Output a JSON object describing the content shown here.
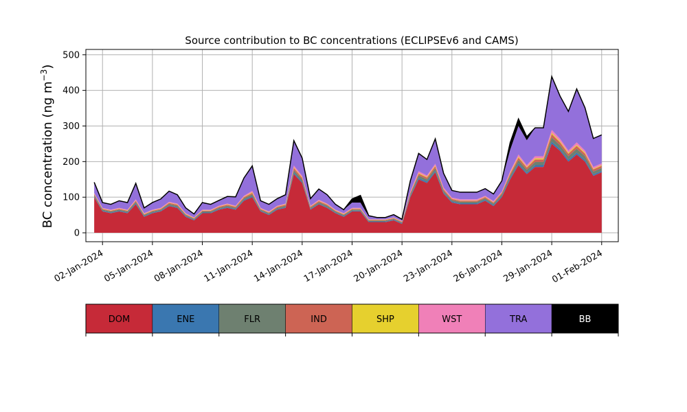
{
  "chart_data": {
    "type": "area",
    "stacked": true,
    "title": "Source contribution to BC concentrations (ECLIPSEv6 and CAMS)",
    "ylabel_main": "BC concentration (ng m",
    "ylabel_sup": "−3",
    "ylabel_close": ")",
    "xlabel": "",
    "ylim": [
      -25,
      515
    ],
    "xlim": [
      "2024-01-01",
      "2024-02-02"
    ],
    "grid": true,
    "y_ticks": [
      "0",
      "100",
      "200",
      "300",
      "400",
      "500"
    ],
    "x_ticks": [
      "02-Jan-2024",
      "05-Jan-2024",
      "08-Jan-2024",
      "11-Jan-2024",
      "14-Jan-2024",
      "17-Jan-2024",
      "20-Jan-2024",
      "23-Jan-2024",
      "26-Jan-2024",
      "29-Jan-2024",
      "01-Feb-2024"
    ],
    "x_tick_dates": [
      "2024-01-02",
      "2024-01-05",
      "2024-01-08",
      "2024-01-11",
      "2024-01-14",
      "2024-01-17",
      "2024-01-20",
      "2024-01-23",
      "2024-01-26",
      "2024-01-29",
      "2024-02-01"
    ],
    "legend_position": "bottom",
    "legend": [
      {
        "name": "DOM",
        "color": "#c62a38"
      },
      {
        "name": "ENE",
        "color": "#3a77b0"
      },
      {
        "name": "FLR",
        "color": "#6e8070"
      },
      {
        "name": "IND",
        "color": "#cd6454"
      },
      {
        "name": "SHP",
        "color": "#e6d02e"
      },
      {
        "name": "WST",
        "color": "#f080b8"
      },
      {
        "name": "TRA",
        "color": "#9370db"
      },
      {
        "name": "BB",
        "color": "#000000"
      }
    ],
    "x": [
      "2024-01-01 12:00",
      "2024-01-02 00:00",
      "2024-01-02 12:00",
      "2024-01-03 00:00",
      "2024-01-03 12:00",
      "2024-01-04 00:00",
      "2024-01-04 12:00",
      "2024-01-05 00:00",
      "2024-01-05 12:00",
      "2024-01-06 00:00",
      "2024-01-06 12:00",
      "2024-01-07 00:00",
      "2024-01-07 12:00",
      "2024-01-08 00:00",
      "2024-01-08 12:00",
      "2024-01-09 00:00",
      "2024-01-09 12:00",
      "2024-01-10 00:00",
      "2024-01-10 12:00",
      "2024-01-11 00:00",
      "2024-01-11 12:00",
      "2024-01-12 00:00",
      "2024-01-12 12:00",
      "2024-01-13 00:00",
      "2024-01-13 12:00",
      "2024-01-14 00:00",
      "2024-01-14 12:00",
      "2024-01-15 00:00",
      "2024-01-15 12:00",
      "2024-01-16 00:00",
      "2024-01-16 12:00",
      "2024-01-17 00:00",
      "2024-01-17 12:00",
      "2024-01-18 00:00",
      "2024-01-18 12:00",
      "2024-01-19 00:00",
      "2024-01-19 12:00",
      "2024-01-20 00:00",
      "2024-01-20 12:00",
      "2024-01-21 00:00",
      "2024-01-21 12:00",
      "2024-01-22 00:00",
      "2024-01-22 12:00",
      "2024-01-23 00:00",
      "2024-01-23 12:00",
      "2024-01-24 00:00",
      "2024-01-24 12:00",
      "2024-01-25 00:00",
      "2024-01-25 12:00",
      "2024-01-26 00:00",
      "2024-01-26 12:00",
      "2024-01-27 00:00",
      "2024-01-27 12:00",
      "2024-01-28 00:00",
      "2024-01-28 12:00",
      "2024-01-29 00:00",
      "2024-01-29 12:00",
      "2024-01-30 00:00",
      "2024-01-30 12:00",
      "2024-01-31 00:00",
      "2024-01-31 12:00",
      "2024-02-01 00:00"
    ],
    "series": [
      {
        "name": "DOM",
        "values": [
          100,
          60,
          55,
          60,
          55,
          80,
          45,
          55,
          60,
          75,
          70,
          45,
          35,
          55,
          55,
          65,
          70,
          65,
          90,
          100,
          60,
          50,
          65,
          70,
          165,
          140,
          65,
          80,
          70,
          55,
          45,
          60,
          60,
          30,
          30,
          30,
          35,
          25,
          100,
          150,
          140,
          170,
          110,
          85,
          80,
          80,
          80,
          90,
          75,
          100,
          150,
          190,
          165,
          185,
          185,
          250,
          230,
          200,
          220,
          200,
          160,
          170
        ]
      },
      {
        "name": "ENE",
        "values": [
          2,
          2,
          2,
          2,
          2,
          3,
          2,
          2,
          2,
          2,
          2,
          2,
          2,
          2,
          2,
          2,
          2,
          2,
          3,
          3,
          2,
          2,
          2,
          2,
          4,
          3,
          2,
          2,
          2,
          2,
          2,
          2,
          2,
          2,
          2,
          2,
          2,
          2,
          3,
          4,
          4,
          4,
          3,
          3,
          3,
          3,
          3,
          3,
          3,
          3,
          4,
          5,
          4,
          5,
          5,
          6,
          5,
          5,
          5,
          5,
          4,
          4
        ]
      },
      {
        "name": "FLR",
        "values": [
          4,
          3,
          3,
          3,
          3,
          4,
          3,
          3,
          3,
          4,
          4,
          3,
          2,
          3,
          3,
          3,
          4,
          3,
          4,
          5,
          3,
          3,
          3,
          4,
          7,
          6,
          3,
          4,
          4,
          3,
          3,
          3,
          3,
          2,
          2,
          2,
          2,
          2,
          5,
          7,
          6,
          7,
          5,
          4,
          4,
          4,
          4,
          4,
          4,
          5,
          7,
          9,
          8,
          9,
          9,
          12,
          11,
          10,
          11,
          10,
          8,
          8
        ]
      },
      {
        "name": "IND",
        "values": [
          3,
          2,
          2,
          2,
          2,
          3,
          2,
          2,
          2,
          3,
          3,
          2,
          2,
          2,
          2,
          3,
          3,
          3,
          3,
          4,
          2,
          2,
          3,
          3,
          6,
          5,
          3,
          3,
          3,
          2,
          2,
          2,
          2,
          2,
          2,
          2,
          2,
          2,
          4,
          5,
          5,
          6,
          4,
          3,
          3,
          3,
          3,
          3,
          3,
          4,
          5,
          7,
          6,
          7,
          7,
          9,
          8,
          7,
          8,
          7,
          6,
          6
        ]
      },
      {
        "name": "SHP",
        "values": [
          1,
          1,
          1,
          1,
          1,
          1,
          1,
          1,
          1,
          1,
          1,
          1,
          1,
          1,
          1,
          1,
          1,
          1,
          1,
          2,
          1,
          1,
          1,
          1,
          2,
          2,
          1,
          1,
          1,
          1,
          1,
          1,
          1,
          1,
          1,
          1,
          1,
          1,
          1,
          2,
          2,
          2,
          1,
          1,
          1,
          1,
          1,
          1,
          1,
          1,
          2,
          3,
          2,
          3,
          3,
          4,
          3,
          3,
          3,
          3,
          2,
          2
        ]
      },
      {
        "name": "WST",
        "values": [
          2,
          2,
          2,
          2,
          2,
          3,
          2,
          2,
          2,
          2,
          2,
          2,
          1,
          2,
          2,
          2,
          2,
          2,
          3,
          4,
          2,
          2,
          2,
          2,
          5,
          4,
          2,
          3,
          2,
          2,
          2,
          2,
          2,
          1,
          1,
          1,
          1,
          1,
          3,
          5,
          4,
          5,
          4,
          3,
          3,
          3,
          3,
          3,
          3,
          3,
          5,
          6,
          5,
          6,
          6,
          8,
          7,
          6,
          7,
          6,
          5,
          5
        ]
      },
      {
        "name": "TRA",
        "values": [
          30,
          15,
          15,
          20,
          20,
          45,
          15,
          20,
          25,
          30,
          25,
          15,
          10,
          20,
          15,
          15,
          20,
          25,
          50,
          70,
          20,
          20,
          20,
          25,
          70,
          50,
          20,
          30,
          25,
          15,
          10,
          15,
          15,
          8,
          5,
          5,
          8,
          5,
          30,
          50,
          45,
          70,
          40,
          20,
          20,
          20,
          20,
          20,
          20,
          30,
          60,
          80,
          70,
          80,
          80,
          150,
          120,
          110,
          150,
          120,
          80,
          80
        ]
      },
      {
        "name": "BB",
        "values": [
          0,
          0,
          0,
          0,
          0,
          0,
          0,
          0,
          0,
          0,
          0,
          0,
          0,
          0,
          0,
          0,
          0,
          0,
          0,
          0,
          0,
          0,
          0,
          0,
          0,
          0,
          0,
          0,
          0,
          0,
          0,
          10,
          20,
          2,
          0,
          0,
          0,
          0,
          0,
          0,
          0,
          0,
          0,
          0,
          0,
          0,
          0,
          0,
          0,
          0,
          20,
          20,
          10,
          0,
          0,
          0,
          0,
          0,
          0,
          0,
          0,
          0
        ]
      }
    ]
  }
}
